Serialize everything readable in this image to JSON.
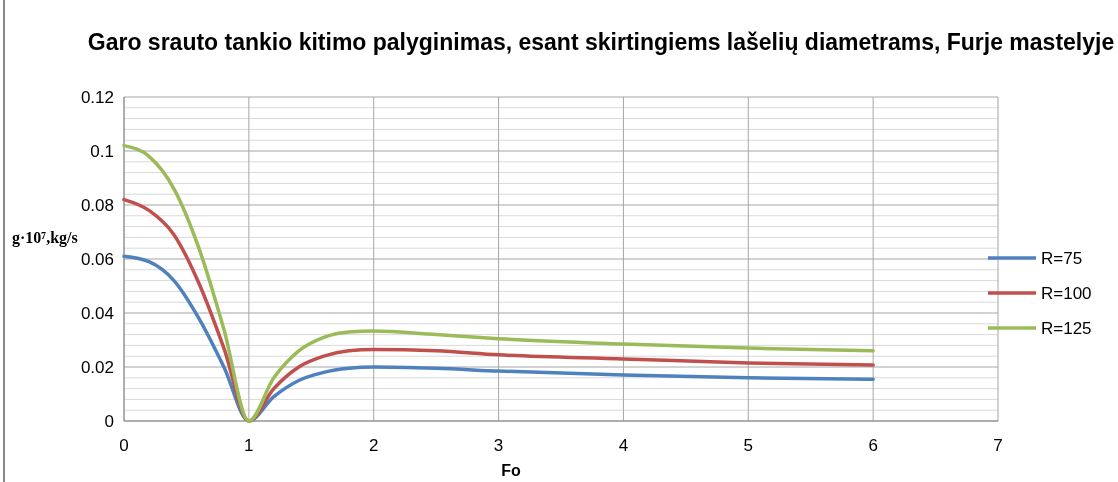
{
  "chart_data": {
    "type": "line",
    "title": "Garo srauto tankio kitimo palyginimas, esant skirtingiems lašelių diametrams, Furje mastelyje",
    "xlabel": "Fo",
    "ylabel": "g·10⁷,kg/s",
    "x": [
      0,
      0.2,
      0.4,
      0.6,
      0.8,
      1,
      1.2,
      1.4,
      1.6,
      1.8,
      2,
      2.5,
      3,
      4,
      5,
      6
    ],
    "series": [
      {
        "name": "R=75",
        "color": "#4f81bd",
        "values": [
          0.061,
          0.059,
          0.052,
          0.038,
          0.02,
          0,
          0.009,
          0.015,
          0.018,
          0.0195,
          0.02,
          0.0195,
          0.0185,
          0.017,
          0.016,
          0.0155
        ]
      },
      {
        "name": "R=100",
        "color": "#c0504d",
        "values": [
          0.082,
          0.078,
          0.069,
          0.051,
          0.027,
          0,
          0.012,
          0.02,
          0.024,
          0.026,
          0.0265,
          0.026,
          0.0245,
          0.023,
          0.0215,
          0.0207
        ]
      },
      {
        "name": "R=125",
        "color": "#9bbb59",
        "values": [
          0.102,
          0.098,
          0.086,
          0.064,
          0.034,
          0,
          0.016,
          0.026,
          0.031,
          0.033,
          0.0333,
          0.032,
          0.0305,
          0.0285,
          0.027,
          0.026
        ]
      }
    ],
    "xlim": [
      0,
      7
    ],
    "xticks": [
      0,
      1,
      2,
      3,
      4,
      5,
      6,
      7
    ],
    "ylim": [
      0,
      0.12
    ],
    "yticks": [
      0,
      {
        "value": 0.004,
        "label": null
      },
      {
        "value": 0.008,
        "label": null
      },
      {
        "value": 0.012,
        "label": null
      },
      {
        "value": 0.016,
        "label": null
      },
      0.02,
      {
        "value": 0.024,
        "label": null
      },
      {
        "value": 0.028,
        "label": null
      },
      {
        "value": 0.032,
        "label": null
      },
      {
        "value": 0.036,
        "label": null
      },
      0.04,
      {
        "value": 0.044,
        "label": null
      },
      {
        "value": 0.048,
        "label": null
      },
      {
        "value": 0.052,
        "label": null
      },
      {
        "value": 0.056,
        "label": null
      },
      0.06,
      {
        "value": 0.064,
        "label": null
      },
      {
        "value": 0.068,
        "label": null
      },
      {
        "value": 0.072,
        "label": null
      },
      {
        "value": 0.076,
        "label": null
      },
      0.08,
      {
        "value": 0.084,
        "label": null
      },
      {
        "value": 0.088,
        "label": null
      },
      {
        "value": 0.092,
        "label": null
      },
      {
        "value": 0.096,
        "label": null
      },
      0.1,
      {
        "value": 0.104,
        "label": null
      },
      {
        "value": 0.108,
        "label": null
      },
      {
        "value": 0.112,
        "label": null
      },
      {
        "value": 0.116,
        "label": null
      },
      0.12
    ],
    "grid": true,
    "legend": "right",
    "marker": "none",
    "line_style": "solid"
  }
}
